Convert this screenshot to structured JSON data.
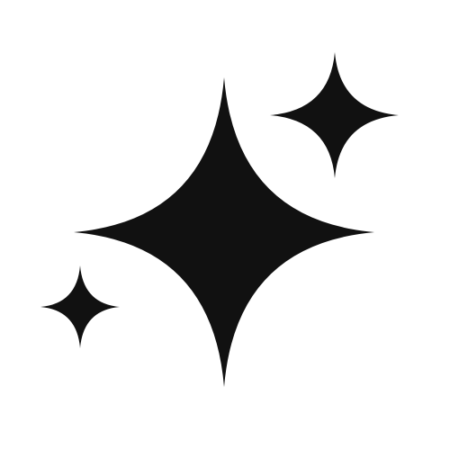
{
  "icon": {
    "name": "sparkles-icon",
    "background_color": "#ffffff",
    "fill_color": "#111111",
    "sparkle_count": 3
  }
}
